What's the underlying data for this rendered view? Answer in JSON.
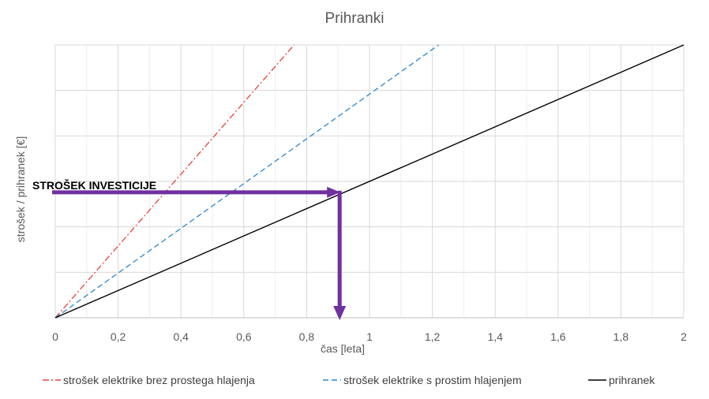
{
  "chart_data": {
    "type": "line",
    "title": "Prihranki",
    "xlabel": "čas [leta]",
    "ylabel": "strošek / prihranek [€]",
    "xlim": [
      0,
      2
    ],
    "ylim": [
      0,
      6
    ],
    "x_ticks": [
      "0",
      "0,2",
      "0,4",
      "0,6",
      "0,8",
      "1",
      "1,2",
      "1,4",
      "1,6",
      "1,8",
      "2"
    ],
    "x_tick_values": [
      0,
      0.2,
      0.4,
      0.6,
      0.8,
      1.0,
      1.2,
      1.4,
      1.6,
      1.8,
      2.0
    ],
    "y_tick_labels_visible": false,
    "grid": true,
    "legend_position": "bottom",
    "series": [
      {
        "name": "strošek elektrike brez prostega hlajenja",
        "color": "#e8413c",
        "dash": "dash-dot",
        "x": [
          0,
          0.76
        ],
        "y": [
          0,
          6
        ]
      },
      {
        "name": "strošek elektrike s prostim hlajenjem",
        "color": "#2e86c8",
        "dash": "dashed",
        "x": [
          0,
          1.22
        ],
        "y": [
          0,
          6
        ]
      },
      {
        "name": "prihranek",
        "color": "#000000",
        "dash": "solid",
        "x": [
          0,
          2.0
        ],
        "y": [
          0,
          6
        ]
      }
    ],
    "annotation": {
      "label": "STROŠEK INVESTICIJE",
      "color": "#7030a0",
      "y_value": 2.76,
      "x_intersect": 0.905
    }
  }
}
